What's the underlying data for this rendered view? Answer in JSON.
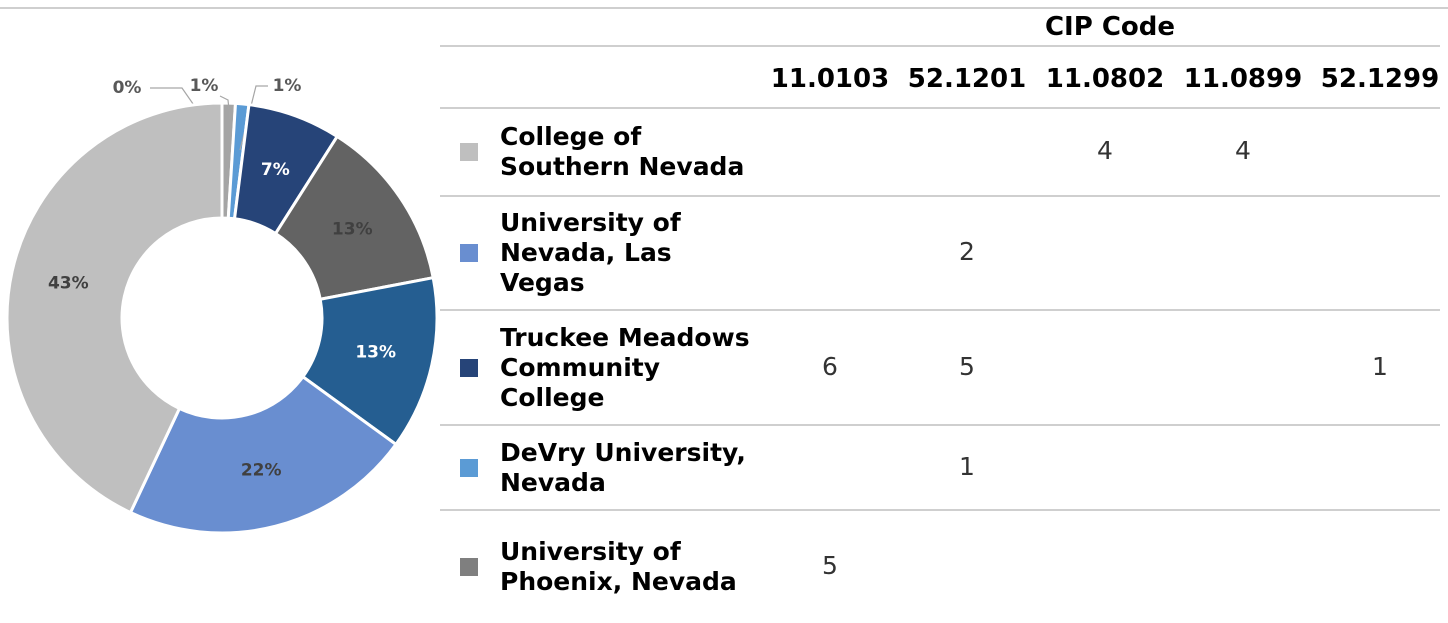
{
  "chart_data": {
    "type": "pie",
    "donut": true,
    "values": [
      0,
      1,
      1,
      7,
      13,
      13,
      22,
      43
    ],
    "value_labels": [
      "0%",
      "1%",
      "1%",
      "7%",
      "13%",
      "13%",
      "22%",
      "43%"
    ],
    "colors": [
      "#264478",
      "#a5a5a5",
      "#5b9bd5",
      "#264478",
      "#636363",
      "#255e91",
      "#698ed0",
      "#bfbfbf"
    ]
  },
  "table": {
    "title": "CIP Code",
    "columns": [
      "11.0103",
      "52.1201",
      "11.0802",
      "11.0899",
      "52.1299"
    ],
    "rows": [
      {
        "name": "College of Southern Nevada",
        "color": "#bfbfbf",
        "values": [
          null,
          null,
          4,
          4,
          null
        ]
      },
      {
        "name": "University of Nevada, Las Vegas",
        "color": "#698ed0",
        "values": [
          null,
          2,
          null,
          null,
          null
        ]
      },
      {
        "name": "Truckee Meadows Community College",
        "color": "#264478",
        "values": [
          6,
          5,
          null,
          null,
          1
        ]
      },
      {
        "name": "DeVry University, Nevada",
        "color": "#5b9bd5",
        "values": [
          null,
          1,
          null,
          null,
          null
        ]
      },
      {
        "name": "University of Phoenix, Nevada",
        "color": "#7f7f7f",
        "values": [
          5,
          null,
          null,
          null,
          null
        ]
      }
    ]
  }
}
